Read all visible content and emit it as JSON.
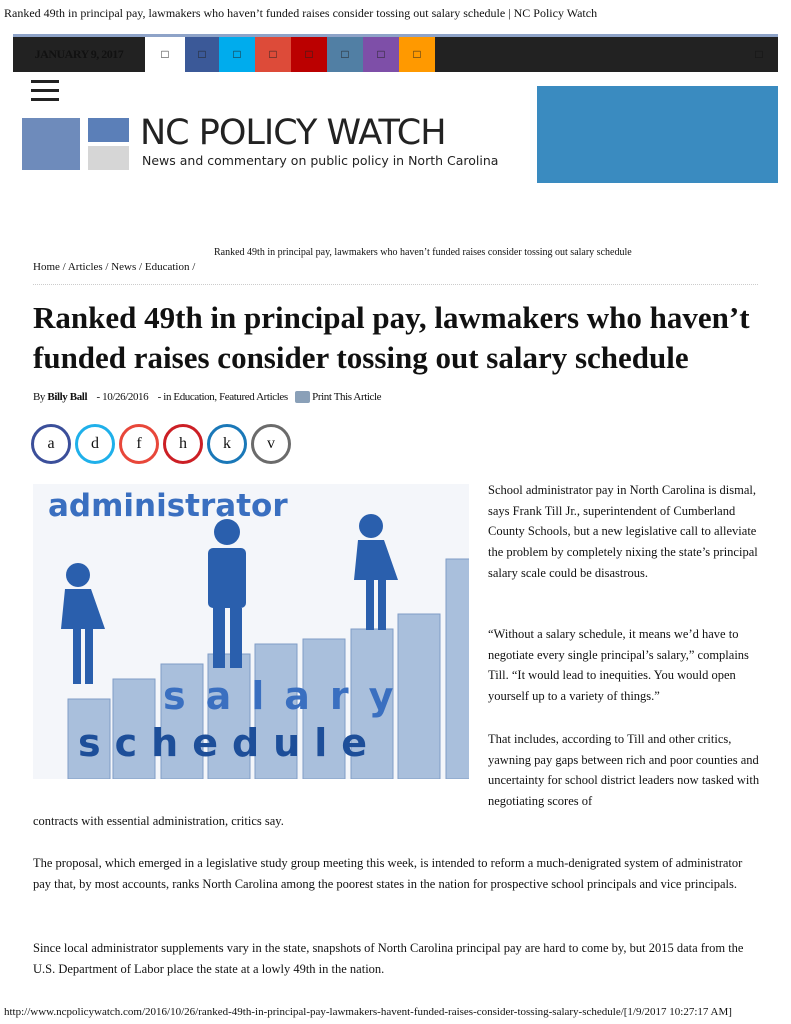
{
  "page_title": "Ranked 49th in principal pay, lawmakers who haven’t funded raises consider tossing out salary schedule | NC Policy Watch",
  "topbar": {
    "date": "JANUARY 9, 2017",
    "social": [
      {
        "icon": "home-icon",
        "color": "#ffffff"
      },
      {
        "icon": "facebook-icon",
        "color": "#3b5998"
      },
      {
        "icon": "twitter-icon",
        "color": "#00aced"
      },
      {
        "icon": "google-plus-icon",
        "color": "#dd4b39"
      },
      {
        "icon": "youtube-icon",
        "color": "#bb0000"
      },
      {
        "icon": "flickr-icon",
        "color": "#517fa4"
      },
      {
        "icon": "instagram-icon",
        "color": "#7e4fa8"
      },
      {
        "icon": "rss-icon",
        "color": "#ff9900"
      }
    ],
    "search_icon": "search-icon"
  },
  "logo": {
    "name": "NC POLICY WATCH",
    "tagline": "News and commentary on public policy in North Carolina"
  },
  "breadcrumb": {
    "current": "Ranked 49th in principal pay, lawmakers who haven’t funded raises consider tossing out salary schedule",
    "items": [
      "Home",
      "Articles",
      "News",
      "Education"
    ]
  },
  "article": {
    "title": "Ranked 49th in principal pay, lawmakers who haven’t funded raises consider tossing out salary schedule",
    "by": "By",
    "author": "Billy Ball",
    "date": "- 10/26/2016",
    "categories": "- in Education, Featured Articles",
    "print": "Print This Article",
    "share": [
      {
        "glyph": "a",
        "color": "#3b4f9a"
      },
      {
        "glyph": "d",
        "color": "#1fb0ea"
      },
      {
        "glyph": "f",
        "color": "#e8473a"
      },
      {
        "glyph": "h",
        "color": "#cc1f25"
      },
      {
        "glyph": "k",
        "color": "#1a78b8"
      },
      {
        "glyph": "v",
        "color": "#6b6b6b"
      }
    ],
    "image_words": {
      "top": "administrator",
      "middle": "salary",
      "bottom": "schedule"
    },
    "paragraphs": [
      "School administrator pay in North Carolina is dismal, says Frank Till Jr., superintendent of Cumberland County Schools, but a new legislative call to alleviate the problem by completely nixing the state’s principal salary scale could be disastrous.",
      "“Without a salary schedule, it means we’d have to negotiate every single principal’s salary,” complains Till. “It would lead to inequities. You would open yourself up to a variety of things.”",
      "That includes, according to Till and other critics, yawning pay gaps between rich and poor counties and uncertainty for school district leaders now tasked with negotiating scores of",
      "contracts with essential administration, critics say.",
      "The proposal, which emerged in a legislative study group meeting this week, is intended to reform a much-denigrated system of administrator pay that, by most accounts, ranks North Carolina among the poorest states in the nation for prospective school principals and vice principals.",
      "Since local administrator supplements vary in the state, snapshots of North Carolina principal pay are hard to come by, but 2015 data from the U.S. Department of Labor place the state at a lowly 49th in the nation."
    ]
  },
  "footer": "http://www.ncpolicywatch.com/2016/10/26/ranked-49th-in-principal-pay-lawmakers-havent-funded-raises-consider-tossing-salary-schedule/[1/9/2017 10:27:17 AM]"
}
